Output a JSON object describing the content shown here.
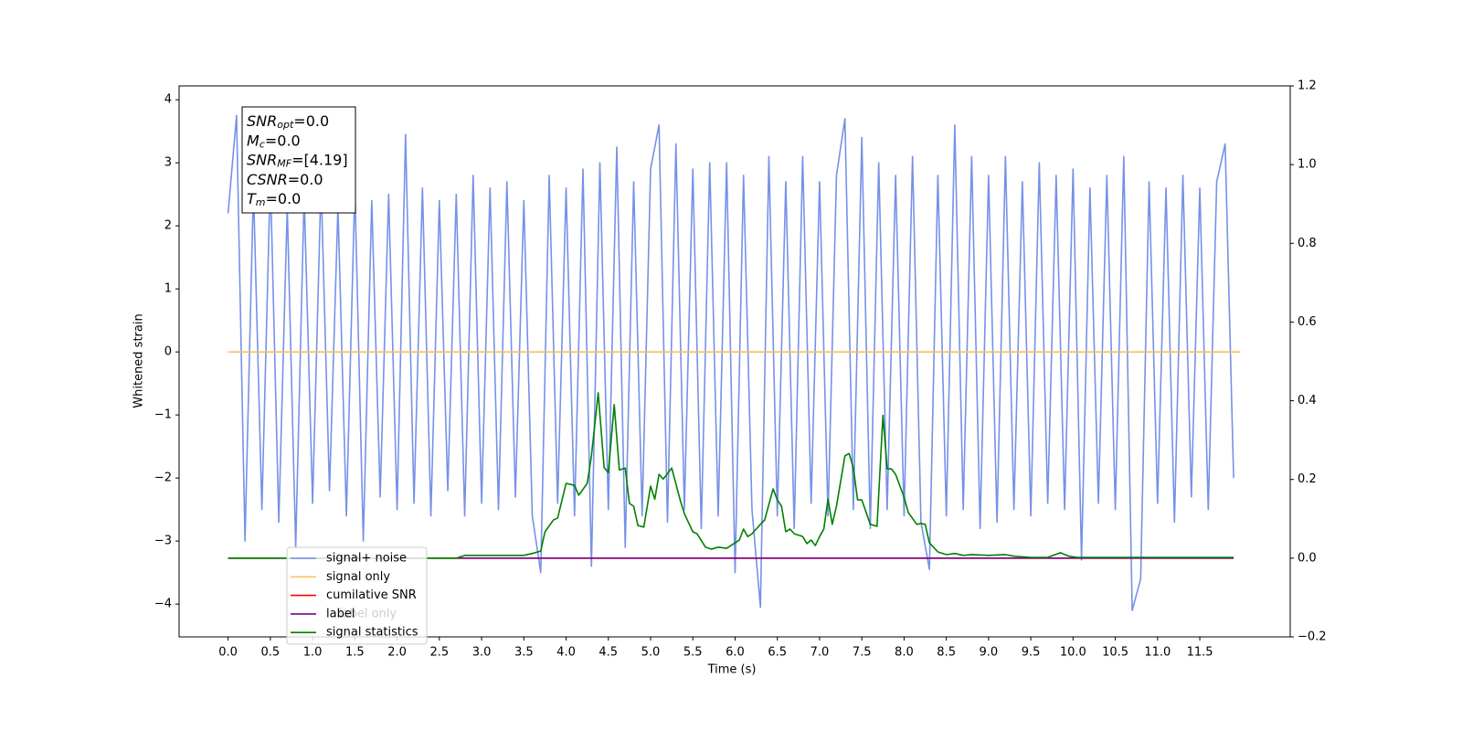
{
  "chart_data": {
    "type": "line",
    "xlabel": "Time (s)",
    "ylabel": "Whitened strain",
    "xlim": [
      -0.58,
      12.57
    ],
    "ylim": [
      -4.52,
      4.22
    ],
    "y2lim": [
      -0.2,
      1.2
    ],
    "xticks": [
      {
        "value": 0,
        "label": "0.0"
      },
      0.5,
      {
        "value": 1,
        "label": "1.0"
      },
      1.5,
      {
        "value": 2,
        "label": "2.0"
      },
      2.5,
      {
        "value": 3,
        "label": "3.0"
      },
      3.5,
      {
        "value": 4,
        "label": "4.0"
      },
      4.5,
      {
        "value": 5,
        "label": "5.0"
      },
      5.5,
      {
        "value": 6,
        "label": "6.0"
      },
      6.5,
      {
        "value": 7,
        "label": "7.0"
      },
      7.5,
      {
        "value": 8,
        "label": "8.0"
      },
      8.5,
      {
        "value": 9,
        "label": "9.0"
      },
      9.5,
      {
        "value": 10,
        "label": "10.0"
      },
      10.5,
      {
        "value": 11,
        "label": "11.0"
      },
      11.5
    ],
    "yticks": [
      {
        "value": -4,
        "label": "−4"
      },
      {
        "value": -3,
        "label": "−3"
      },
      {
        "value": -2,
        "label": "−2"
      },
      {
        "value": -1,
        "label": "−1"
      },
      0,
      1,
      2,
      3,
      4
    ],
    "y2ticks": [
      {
        "value": -0.2,
        "label": "−0.2"
      },
      {
        "value": 0,
        "label": "0.0"
      },
      0.2,
      0.4,
      0.6,
      0.8,
      {
        "value": 1,
        "label": "1.0"
      },
      1.2
    ],
    "annotations": [
      {
        "base": "SNR",
        "sub": "opt",
        "text": "=0.0"
      },
      {
        "base": "M",
        "sub": "c",
        "text": "=0.0"
      },
      {
        "base": "SNR",
        "sub": "MF",
        "text": "=[4.19]"
      },
      {
        "base": "CSNR",
        "sub": null,
        "text": "=0.0"
      },
      {
        "base": "T",
        "sub": "m",
        "text": "=0.0"
      }
    ],
    "hidden_legend_text": "label only",
    "series": [
      {
        "name": "signal+ noise",
        "color": "#6f8be6",
        "x": [
          0,
          0.1,
          0.2,
          0.3,
          0.4,
          0.5,
          0.6,
          0.7,
          0.8,
          0.9,
          1,
          1.1,
          1.2,
          1.3,
          1.4,
          1.5,
          1.6,
          1.7,
          1.8,
          1.9,
          2,
          2.1,
          2.2,
          2.3,
          2.4,
          2.5,
          2.6,
          2.7,
          2.8,
          2.9,
          3,
          3.1,
          3.2,
          3.3,
          3.4,
          3.5,
          3.6,
          3.7,
          3.8,
          3.9,
          4,
          4.1,
          4.2,
          4.3,
          4.4,
          4.5,
          4.6,
          4.7,
          4.8,
          4.9,
          5,
          5.1,
          5.2,
          5.3,
          5.4,
          5.5,
          5.6,
          5.7,
          5.8,
          5.9,
          6,
          6.1,
          6.2,
          6.3,
          6.4,
          6.5,
          6.6,
          6.7,
          6.8,
          6.9,
          7,
          7.1,
          7.2,
          7.3,
          7.4,
          7.5,
          7.6,
          7.7,
          7.8,
          7.9,
          8,
          8.1,
          8.2,
          8.3,
          8.4,
          8.5,
          8.6,
          8.7,
          8.8,
          8.9,
          9,
          9.1,
          9.2,
          9.3,
          9.4,
          9.5,
          9.6,
          9.7,
          9.8,
          9.9,
          10,
          10.1,
          10.2,
          10.3,
          10.4,
          10.5,
          10.6,
          10.7,
          10.8,
          10.9,
          11,
          11.1,
          11.2,
          11.3,
          11.4,
          11.5,
          11.6,
          11.7,
          11.8,
          11.9
        ],
        "values": [
          2.2,
          3.75,
          -3.0,
          2.6,
          -2.5,
          2.8,
          -2.7,
          2.3,
          -3.1,
          2.5,
          -2.4,
          2.7,
          -2.2,
          2.3,
          -2.6,
          2.6,
          -3.0,
          2.4,
          -2.3,
          2.5,
          -2.5,
          3.45,
          -2.4,
          2.6,
          -2.6,
          2.4,
          -2.2,
          2.5,
          -2.6,
          2.8,
          -2.4,
          2.6,
          -2.5,
          2.7,
          -2.3,
          2.4,
          -2.6,
          -3.5,
          2.8,
          -2.4,
          2.6,
          -2.6,
          2.9,
          -3.4,
          3.0,
          -2.5,
          3.25,
          -3.1,
          2.7,
          -2.6,
          2.9,
          3.6,
          -2.7,
          3.3,
          -2.5,
          2.9,
          -2.8,
          3.0,
          -2.6,
          3.0,
          -3.5,
          2.8,
          -2.5,
          -4.05,
          3.1,
          -2.6,
          2.7,
          -2.8,
          3.1,
          -2.4,
          2.7,
          -2.6,
          2.8,
          3.7,
          -2.5,
          3.4,
          -2.8,
          3.0,
          -2.5,
          2.8,
          -2.6,
          3.1,
          -2.7,
          -3.45,
          2.8,
          -2.6,
          3.6,
          -2.5,
          3.1,
          -2.8,
          2.8,
          -2.7,
          3.1,
          -2.5,
          2.7,
          -2.6,
          3.0,
          -2.4,
          2.8,
          -2.5,
          2.9,
          -3.3,
          2.6,
          -2.4,
          2.8,
          -2.5,
          3.1,
          -4.1,
          -3.6,
          2.7,
          -2.4,
          2.6,
          -2.7,
          2.8,
          -2.3,
          2.6,
          -2.5,
          2.7,
          3.3,
          -2.0
        ]
      },
      {
        "name": "signal only",
        "color": "#ffbf60",
        "x": [
          0,
          11.98
        ],
        "values": [
          0,
          0
        ]
      },
      {
        "name": "cumilative SNR",
        "color": "#ff0000",
        "x": [
          0,
          11.9
        ],
        "values": [
          0,
          0
        ],
        "axis": "y2"
      },
      {
        "name": "label",
        "color": "#800080",
        "x": [
          0,
          11.9
        ],
        "values": [
          0,
          0
        ],
        "axis": "y2"
      },
      {
        "name": "signal statistics",
        "color": "#008000",
        "axis": "y2",
        "x": [
          0,
          2.7,
          2.8,
          3.0,
          3.5,
          3.6,
          3.7,
          3.75,
          3.85,
          3.9,
          4.0,
          4.1,
          4.15,
          4.25,
          4.3,
          4.38,
          4.45,
          4.5,
          4.57,
          4.63,
          4.7,
          4.75,
          4.8,
          4.85,
          4.92,
          5.0,
          5.05,
          5.1,
          5.15,
          5.25,
          5.35,
          5.4,
          5.5,
          5.55,
          5.65,
          5.72,
          5.8,
          5.9,
          6.0,
          6.05,
          6.1,
          6.15,
          6.2,
          6.3,
          6.35,
          6.45,
          6.5,
          6.55,
          6.6,
          6.65,
          6.7,
          6.8,
          6.85,
          6.9,
          6.95,
          7.0,
          7.05,
          7.1,
          7.15,
          7.2,
          7.3,
          7.35,
          7.4,
          7.45,
          7.5,
          7.6,
          7.68,
          7.75,
          7.8,
          7.85,
          7.9,
          8.0,
          8.05,
          8.15,
          8.2,
          8.25,
          8.3,
          8.4,
          8.5,
          8.6,
          8.7,
          8.8,
          9.0,
          9.2,
          9.3,
          9.5,
          9.7,
          9.85,
          9.95,
          10.05,
          11.9
        ],
        "values": [
          0,
          0,
          0.007,
          0.007,
          0.007,
          0.012,
          0.018,
          0.067,
          0.097,
          0.102,
          0.19,
          0.185,
          0.16,
          0.19,
          0.26,
          0.42,
          0.23,
          0.217,
          0.39,
          0.224,
          0.229,
          0.139,
          0.132,
          0.083,
          0.079,
          0.183,
          0.15,
          0.213,
          0.201,
          0.229,
          0.148,
          0.113,
          0.067,
          0.062,
          0.028,
          0.023,
          0.028,
          0.025,
          0.039,
          0.046,
          0.074,
          0.055,
          0.062,
          0.086,
          0.097,
          0.176,
          0.148,
          0.132,
          0.067,
          0.074,
          0.062,
          0.055,
          0.037,
          0.046,
          0.032,
          0.055,
          0.074,
          0.15,
          0.086,
          0.132,
          0.26,
          0.266,
          0.229,
          0.148,
          0.148,
          0.086,
          0.081,
          0.363,
          0.227,
          0.227,
          0.213,
          0.155,
          0.116,
          0.086,
          0.088,
          0.086,
          0.039,
          0.016,
          0.009,
          0.012,
          0.007,
          0.009,
          0.007,
          0.009,
          0.005,
          0.002,
          0.002,
          0.014,
          0.005,
          0.002,
          0.002
        ]
      }
    ]
  }
}
